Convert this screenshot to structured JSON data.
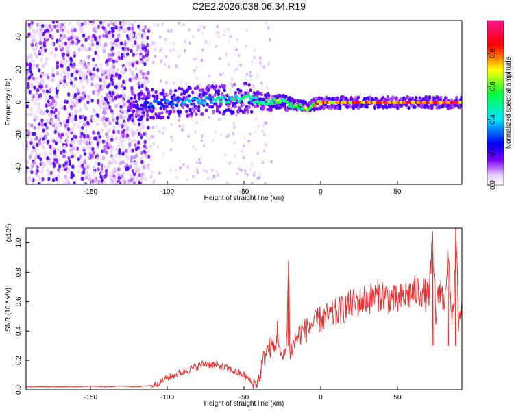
{
  "title": "C2E2.2026.038.06.34.R19",
  "chart_data": [
    {
      "type": "heatmap",
      "name": "spectrogram",
      "xlabel": "Height of straight line (km)",
      "ylabel": "Frequency (Hz)",
      "xlim": [
        -192,
        92
      ],
      "ylim": [
        -50,
        50
      ],
      "xticks": [
        -150,
        -100,
        -50,
        0,
        50
      ],
      "yticks": [
        -40,
        -20,
        0,
        20,
        40
      ],
      "grid": false,
      "colorbar": {
        "label": "Normalized spectral amplitude",
        "range": [
          0,
          1
        ],
        "ticks": [
          "0.0",
          "0.2",
          "0.4",
          "0.6",
          "0.8"
        ],
        "tick_values": [
          0.0,
          0.2,
          0.4,
          0.6,
          0.8
        ],
        "colors": [
          "#ffffff",
          "#e6ccff",
          "#8000ff",
          "#0000ff",
          "#00e5ff",
          "#00ff40",
          "#ffff00",
          "#ff0000",
          "#ff1493"
        ]
      },
      "description_points": {
        "noise_region_x": [
          -192,
          -112
        ],
        "signal_track": [
          {
            "x": -125,
            "f": -3,
            "amp": 0.15
          },
          {
            "x": -110,
            "f": -1,
            "amp": 0.3
          },
          {
            "x": -95,
            "f": 0,
            "amp": 0.35
          },
          {
            "x": -80,
            "f": 1,
            "amp": 0.4
          },
          {
            "x": -60,
            "f": 2,
            "amp": 0.45
          },
          {
            "x": -48,
            "f": 3,
            "amp": 0.5
          },
          {
            "x": -40,
            "f": 1,
            "amp": 0.55
          },
          {
            "x": -25,
            "f": 0,
            "amp": 0.6
          },
          {
            "x": -10,
            "f": -3,
            "amp": 0.6
          },
          {
            "x": 0,
            "f": 0,
            "amp": 0.8
          },
          {
            "x": 50,
            "f": 0,
            "amp": 0.85
          },
          {
            "x": 90,
            "f": 0,
            "amp": 0.9
          }
        ]
      }
    },
    {
      "type": "line",
      "name": "snr",
      "xlabel": "Height of straight line (km)",
      "ylabel": "SNR (10 * v/v)",
      "scale_label": "(x10^4)",
      "xlim": [
        -192,
        92
      ],
      "ylim": [
        0,
        1.1
      ],
      "xticks": [
        -150,
        -100,
        -50,
        0,
        50
      ],
      "yticks": [
        "0.0",
        "0.2",
        "0.4",
        "0.6",
        "0.8",
        "1.0"
      ],
      "ytick_values": [
        0.0,
        0.2,
        0.4,
        0.6,
        0.8,
        1.0
      ],
      "grid": false,
      "color": "#e8302e",
      "series": [
        {
          "name": "SNR",
          "x": [
            -192,
            -180,
            -170,
            -160,
            -150,
            -140,
            -130,
            -120,
            -110,
            -105,
            -100,
            -95,
            -90,
            -85,
            -80,
            -75,
            -70,
            -65,
            -60,
            -55,
            -50,
            -45,
            -42,
            -40,
            -38,
            -36,
            -34,
            -32,
            -30,
            -28,
            -26,
            -24,
            -22,
            -21,
            -20,
            -18,
            -16,
            -14,
            -12,
            -10,
            -8,
            -6,
            -4,
            -2,
            0,
            5,
            10,
            15,
            20,
            25,
            30,
            35,
            40,
            45,
            50,
            55,
            60,
            65,
            70,
            73,
            75,
            78,
            80,
            83,
            85,
            87,
            88,
            90,
            92
          ],
          "values": [
            0.02,
            0.02,
            0.02,
            0.02,
            0.025,
            0.02,
            0.025,
            0.02,
            0.03,
            0.05,
            0.08,
            0.1,
            0.12,
            0.14,
            0.16,
            0.18,
            0.17,
            0.16,
            0.14,
            0.12,
            0.1,
            0.05,
            0.04,
            0.08,
            0.18,
            0.25,
            0.28,
            0.3,
            0.27,
            0.42,
            0.2,
            0.22,
            0.35,
            0.88,
            0.25,
            0.3,
            0.35,
            0.38,
            0.4,
            0.4,
            0.42,
            0.45,
            0.44,
            0.47,
            0.48,
            0.5,
            0.52,
            0.55,
            0.58,
            0.6,
            0.62,
            0.63,
            0.65,
            0.62,
            0.6,
            0.64,
            0.66,
            0.68,
            0.62,
            0.95,
            0.5,
            0.72,
            0.58,
            0.9,
            0.5,
            0.62,
            1.06,
            0.4,
            0.55
          ]
        }
      ]
    }
  ]
}
